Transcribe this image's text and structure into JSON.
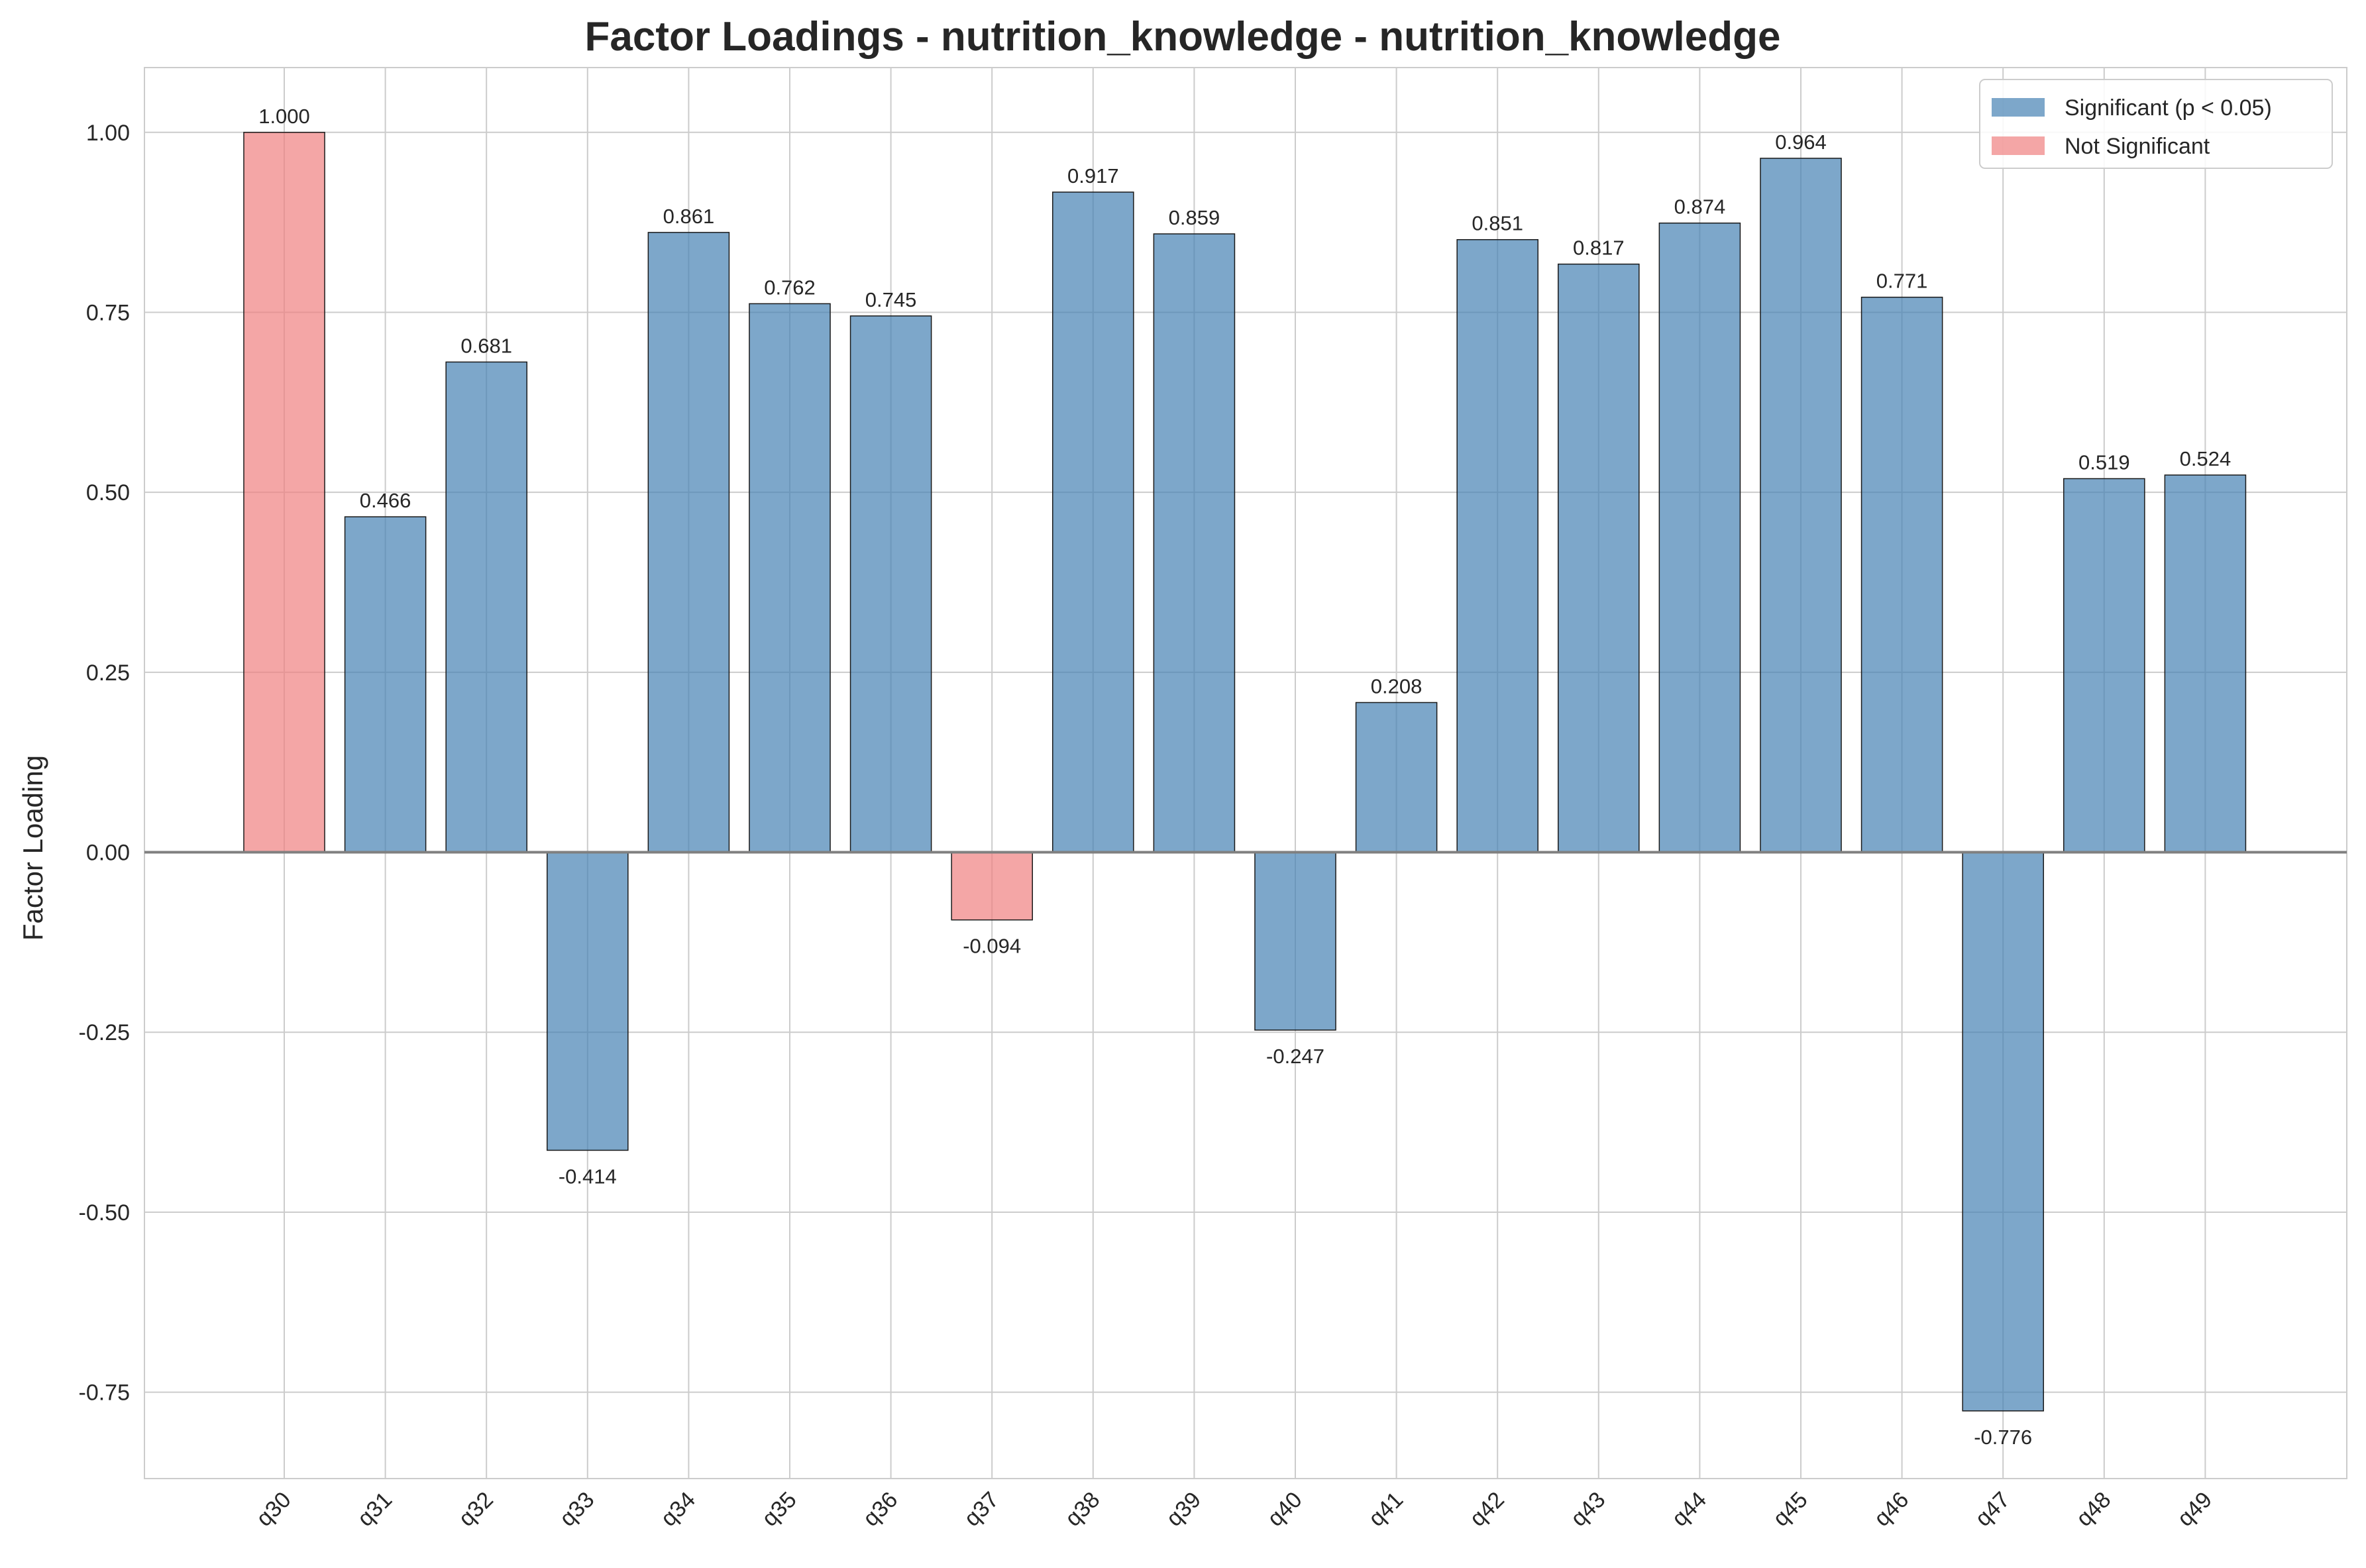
{
  "chart_data": {
    "type": "bar",
    "title": "Factor Loadings - nutrition_knowledge - nutrition_knowledge",
    "xlabel": "",
    "ylabel": "Factor Loading",
    "categories": [
      "q30",
      "q31",
      "q32",
      "q33",
      "q34",
      "q35",
      "q36",
      "q37",
      "q38",
      "q39",
      "q40",
      "q41",
      "q42",
      "q43",
      "q44",
      "q45",
      "q46",
      "q47",
      "q48",
      "q49"
    ],
    "values": [
      1.0,
      0.466,
      0.681,
      -0.414,
      0.861,
      0.762,
      0.745,
      -0.094,
      0.917,
      0.859,
      -0.247,
      0.208,
      0.851,
      0.817,
      0.874,
      0.964,
      0.771,
      -0.776,
      0.519,
      0.524
    ],
    "value_labels": [
      "1.000",
      "0.466",
      "0.681",
      "-0.414",
      "0.861",
      "0.762",
      "0.745",
      "-0.094",
      "0.917",
      "0.859",
      "-0.247",
      "0.208",
      "0.851",
      "0.817",
      "0.874",
      "0.964",
      "0.771",
      "-0.776",
      "0.519",
      "0.524"
    ],
    "significant": [
      false,
      true,
      true,
      true,
      true,
      true,
      true,
      false,
      true,
      true,
      true,
      true,
      true,
      true,
      true,
      true,
      true,
      true,
      true,
      true
    ],
    "ylim": [
      -0.87,
      1.09
    ],
    "yticks": [
      -0.75,
      -0.5,
      -0.25,
      0.0,
      0.25,
      0.5,
      0.75,
      1.0
    ],
    "ytick_labels": [
      "-0.75",
      "-0.50",
      "-0.25",
      "0.00",
      "0.25",
      "0.50",
      "0.75",
      "1.00"
    ],
    "grid": true,
    "legend": {
      "placement": "top-right",
      "entries": [
        {
          "label": "Significant (p < 0.05)",
          "color": "#4682b4"
        },
        {
          "label": "Not Significant",
          "color": "#f08080"
        }
      ]
    },
    "colors": {
      "significant": "#4682b4",
      "not_significant": "#f08080"
    }
  }
}
